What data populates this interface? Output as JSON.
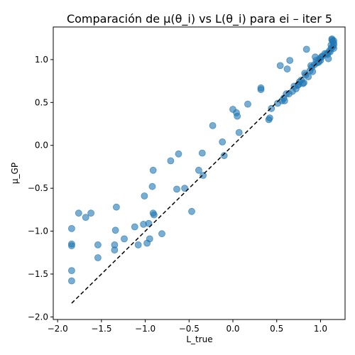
{
  "chart_data": {
    "type": "scatter",
    "title": "Comparación de μ(θ_i) vs L(θ_i) para ei – iter 5",
    "xlabel": "L_true",
    "ylabel": "μ_GP",
    "xlim": [
      -2.05,
      1.28
    ],
    "ylim": [
      -2.03,
      1.38
    ],
    "xticks": [
      -2.0,
      -1.5,
      -1.0,
      -0.5,
      0.0,
      0.5,
      1.0
    ],
    "xtick_labels": [
      "−2.0",
      "−1.5",
      "−1.0",
      "−0.5",
      "0.0",
      "0.5",
      "1.0"
    ],
    "yticks": [
      -2.0,
      -1.5,
      -1.0,
      -0.5,
      0.0,
      0.5,
      1.0
    ],
    "ytick_labels": [
      "−2.0",
      "−1.5",
      "−1.0",
      "−0.5",
      "0.0",
      "0.5",
      "1.0"
    ],
    "grid": false,
    "reference_line": {
      "x": [
        -1.84,
        1.15
      ],
      "y": [
        -1.84,
        1.15
      ],
      "style": "dashed",
      "color": "#000000"
    },
    "series": [
      {
        "color": "#1f77b4",
        "points": [
          [
            -1.84,
            -1.58
          ],
          [
            -1.84,
            -1.46
          ],
          [
            -1.84,
            -1.17
          ],
          [
            -1.84,
            -1.15
          ],
          [
            -1.84,
            -0.97
          ],
          [
            -1.76,
            -0.79
          ],
          [
            -1.68,
            -0.84
          ],
          [
            -1.62,
            -0.79
          ],
          [
            -1.54,
            -1.31
          ],
          [
            -1.54,
            -1.16
          ],
          [
            -1.35,
            -1.22
          ],
          [
            -1.35,
            -1.16
          ],
          [
            -1.34,
            -0.99
          ],
          [
            -1.33,
            -0.72
          ],
          [
            -1.24,
            -1.09
          ],
          [
            -1.12,
            -0.95
          ],
          [
            -1.08,
            -1.16
          ],
          [
            -1.02,
            -0.92
          ],
          [
            -1.01,
            -0.59
          ],
          [
            -0.98,
            -1.14
          ],
          [
            -0.96,
            -0.91
          ],
          [
            -0.95,
            -1.09
          ],
          [
            -0.92,
            -0.48
          ],
          [
            -0.91,
            -0.29
          ],
          [
            -0.91,
            -0.79
          ],
          [
            -0.9,
            -0.81
          ],
          [
            -0.81,
            -1.03
          ],
          [
            -0.71,
            -0.18
          ],
          [
            -0.64,
            -0.51
          ],
          [
            -0.62,
            -0.1
          ],
          [
            -0.55,
            -0.5
          ],
          [
            -0.47,
            -0.77
          ],
          [
            -0.39,
            -0.29
          ],
          [
            -0.35,
            -0.09
          ],
          [
            -0.34,
            -0.35
          ],
          [
            -0.23,
            0.23
          ],
          [
            -0.12,
            0.04
          ],
          [
            -0.1,
            -0.12
          ],
          [
            0.0,
            0.42
          ],
          [
            0.04,
            0.38
          ],
          [
            0.05,
            0.34
          ],
          [
            0.07,
            0.15
          ],
          [
            0.17,
            0.48
          ],
          [
            0.32,
            0.65
          ],
          [
            0.32,
            0.67
          ],
          [
            0.41,
            0.3
          ],
          [
            0.42,
            0.32
          ],
          [
            0.44,
            0.43
          ],
          [
            0.51,
            0.49
          ],
          [
            0.54,
            0.93
          ],
          [
            0.56,
            0.52
          ],
          [
            0.58,
            0.55
          ],
          [
            0.59,
            0.52
          ],
          [
            0.61,
            0.6
          ],
          [
            0.62,
            0.89
          ],
          [
            0.64,
            0.6
          ],
          [
            0.65,
            0.99
          ],
          [
            0.68,
            0.63
          ],
          [
            0.7,
            0.69
          ],
          [
            0.72,
            0.66
          ],
          [
            0.74,
            0.7
          ],
          [
            0.75,
            0.71
          ],
          [
            0.76,
            0.74
          ],
          [
            0.78,
            0.76
          ],
          [
            0.8,
            0.72
          ],
          [
            0.81,
            0.73
          ],
          [
            0.82,
            0.84
          ],
          [
            0.83,
            0.82
          ],
          [
            0.84,
            1.12
          ],
          [
            0.86,
            0.8
          ],
          [
            0.88,
            0.87
          ],
          [
            0.89,
            0.93
          ],
          [
            0.9,
            0.91
          ],
          [
            0.91,
            0.86
          ],
          [
            0.93,
            0.94
          ],
          [
            0.94,
            1.03
          ],
          [
            0.95,
            0.99
          ],
          [
            0.96,
            0.96
          ],
          [
            0.98,
            0.97
          ],
          [
            0.99,
            1.01
          ],
          [
            1.0,
            0.99
          ],
          [
            1.01,
            1.03
          ],
          [
            1.02,
            1.04
          ],
          [
            1.05,
            1.07
          ],
          [
            1.07,
            1.07
          ],
          [
            1.08,
            1.06
          ],
          [
            1.09,
            1.01
          ],
          [
            1.1,
            1.1
          ],
          [
            1.11,
            1.09
          ],
          [
            1.12,
            1.13
          ],
          [
            1.12,
            1.17
          ],
          [
            1.13,
            1.23
          ],
          [
            1.13,
            1.24
          ],
          [
            1.14,
            1.15
          ],
          [
            1.14,
            1.21
          ],
          [
            1.15,
            1.22
          ],
          [
            1.15,
            1.17
          ],
          [
            1.15,
            1.19
          ],
          [
            1.15,
            1.13
          ]
        ]
      }
    ]
  }
}
